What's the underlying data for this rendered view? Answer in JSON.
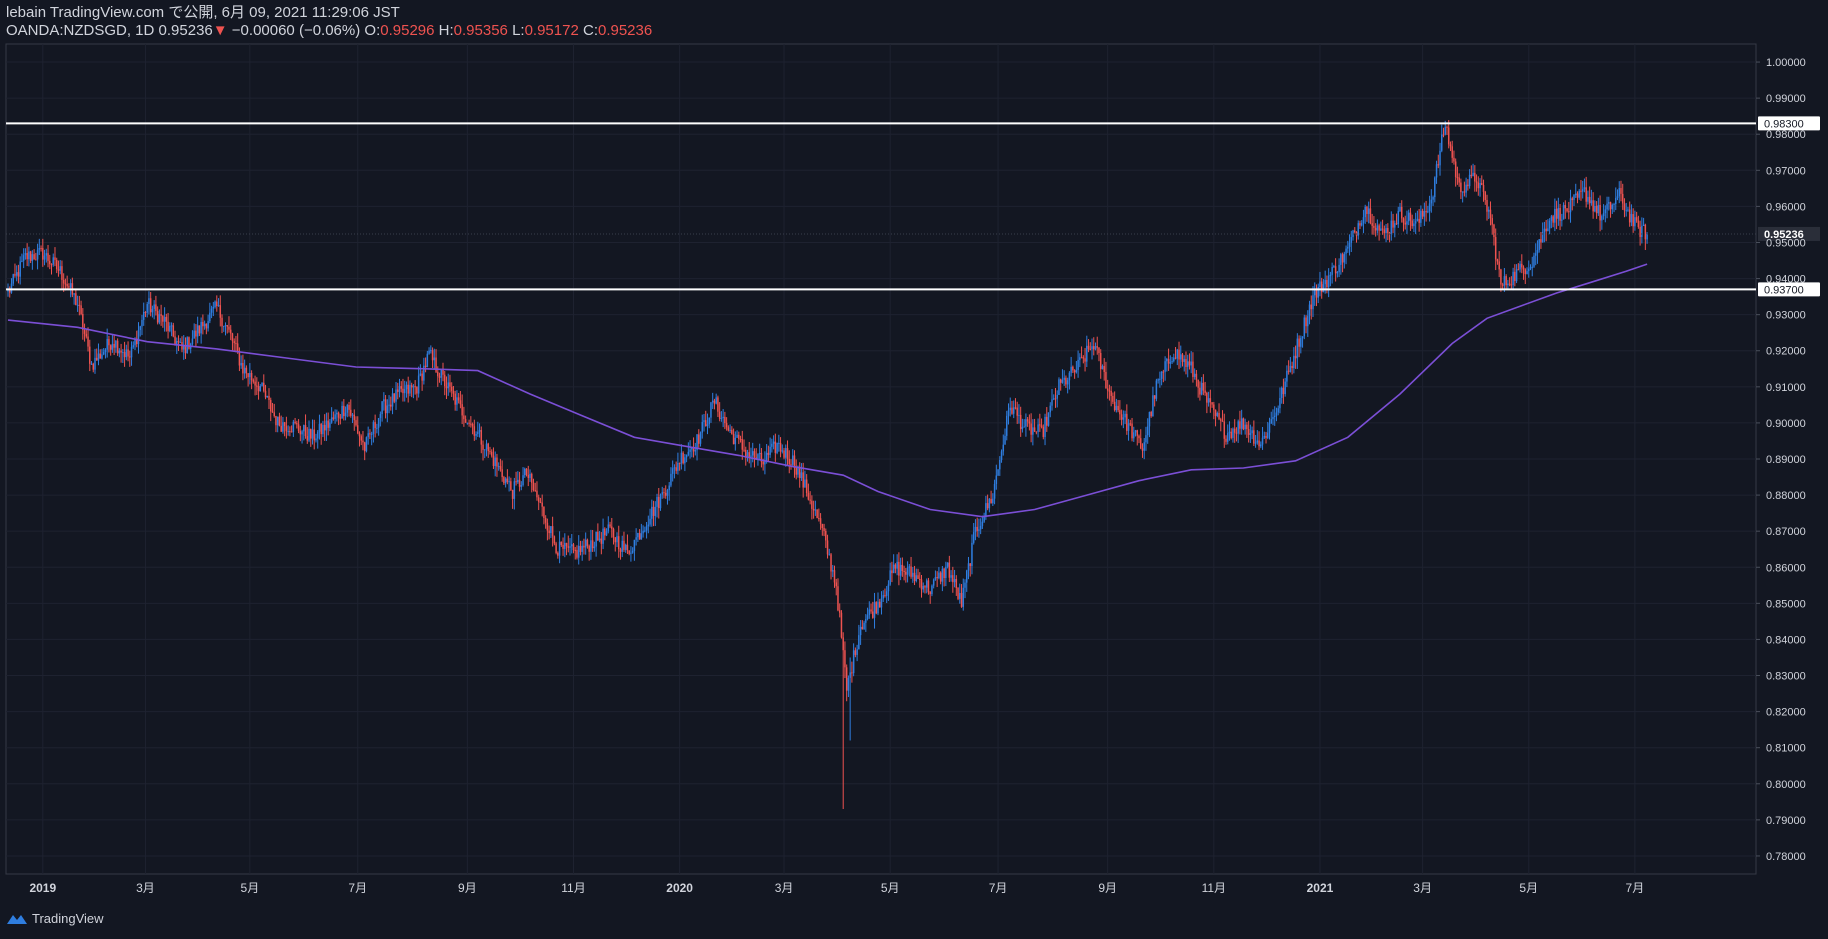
{
  "header": {
    "publisher_line": "lebain TradingView.com で公開, 6月 09, 2021 11:29:06 JST",
    "symbol": "OANDA:NZDSGD, 1D",
    "last_price": "0.95236",
    "arrow": "▼",
    "change": "−0.00060 (−0.06%)",
    "o_label": "O:",
    "o_value": "0.95296",
    "h_label": "H:",
    "h_value": "0.95356",
    "l_label": "L:",
    "l_value": "0.95172",
    "c_label": "C:",
    "c_value": "0.95236"
  },
  "brand": {
    "name": "TradingView"
  },
  "colors": {
    "background": "#131722",
    "up": "#2f7ee0",
    "down": "#ef5350",
    "ma": "#7b4fd6",
    "level_line": "#ffffff",
    "grid": "#1e2230",
    "axis_text": "#d1d4dc"
  },
  "chart_data": {
    "type": "candlestick",
    "title": "OANDA:NZDSGD, 1D",
    "ylim": [
      0.775,
      1.005
    ],
    "y_ticks": [
      "1.00000",
      "0.99000",
      "0.98000",
      "0.97000",
      "0.96000",
      "0.95000",
      "0.94000",
      "0.93000",
      "0.92000",
      "0.91000",
      "0.90000",
      "0.89000",
      "0.88000",
      "0.87000",
      "0.86000",
      "0.85000",
      "0.84000",
      "0.83000",
      "0.82000",
      "0.81000",
      "0.80000",
      "0.79000",
      "0.78000"
    ],
    "x_ticks": [
      "2019",
      "3月",
      "5月",
      "7月",
      "9月",
      "11月",
      "2020",
      "3月",
      "5月",
      "7月",
      "9月",
      "11月",
      "2021",
      "3月",
      "5月",
      "7月"
    ],
    "x_tick_bold": [
      true,
      false,
      false,
      false,
      false,
      false,
      true,
      false,
      false,
      false,
      false,
      false,
      true,
      false,
      false,
      false
    ],
    "x_tick_day_index": [
      20,
      79,
      139,
      201,
      264,
      325,
      386,
      446,
      507,
      569,
      632,
      693,
      754,
      813,
      874,
      935
    ],
    "total_days": 1000,
    "price_path": [
      [
        0,
        0.936
      ],
      [
        10,
        0.946
      ],
      [
        20,
        0.947
      ],
      [
        30,
        0.942
      ],
      [
        40,
        0.933
      ],
      [
        48,
        0.916
      ],
      [
        60,
        0.923
      ],
      [
        70,
        0.918
      ],
      [
        80,
        0.933
      ],
      [
        90,
        0.928
      ],
      [
        100,
        0.92
      ],
      [
        110,
        0.926
      ],
      [
        120,
        0.932
      ],
      [
        128,
        0.924
      ],
      [
        135,
        0.915
      ],
      [
        145,
        0.91
      ],
      [
        155,
        0.9
      ],
      [
        165,
        0.899
      ],
      [
        175,
        0.896
      ],
      [
        185,
        0.9
      ],
      [
        195,
        0.905
      ],
      [
        205,
        0.893
      ],
      [
        215,
        0.904
      ],
      [
        225,
        0.908
      ],
      [
        235,
        0.91
      ],
      [
        242,
        0.919
      ],
      [
        250,
        0.912
      ],
      [
        260,
        0.904
      ],
      [
        270,
        0.897
      ],
      [
        280,
        0.889
      ],
      [
        290,
        0.881
      ],
      [
        298,
        0.886
      ],
      [
        306,
        0.877
      ],
      [
        316,
        0.865
      ],
      [
        326,
        0.864
      ],
      [
        336,
        0.867
      ],
      [
        346,
        0.87
      ],
      [
        356,
        0.864
      ],
      [
        366,
        0.872
      ],
      [
        376,
        0.88
      ],
      [
        386,
        0.89
      ],
      [
        396,
        0.895
      ],
      [
        406,
        0.906
      ],
      [
        414,
        0.898
      ],
      [
        424,
        0.892
      ],
      [
        434,
        0.889
      ],
      [
        442,
        0.894
      ],
      [
        452,
        0.889
      ],
      [
        460,
        0.88
      ],
      [
        468,
        0.87
      ],
      [
        476,
        0.855
      ],
      [
        482,
        0.826
      ],
      [
        490,
        0.844
      ],
      [
        500,
        0.85
      ],
      [
        510,
        0.86
      ],
      [
        520,
        0.858
      ],
      [
        530,
        0.854
      ],
      [
        540,
        0.86
      ],
      [
        548,
        0.85
      ],
      [
        556,
        0.87
      ],
      [
        566,
        0.88
      ],
      [
        576,
        0.905
      ],
      [
        584,
        0.899
      ],
      [
        594,
        0.897
      ],
      [
        604,
        0.91
      ],
      [
        614,
        0.915
      ],
      [
        624,
        0.922
      ],
      [
        634,
        0.907
      ],
      [
        644,
        0.899
      ],
      [
        652,
        0.893
      ],
      [
        660,
        0.91
      ],
      [
        670,
        0.92
      ],
      [
        680,
        0.915
      ],
      [
        690,
        0.905
      ],
      [
        700,
        0.897
      ],
      [
        710,
        0.9
      ],
      [
        720,
        0.894
      ],
      [
        730,
        0.905
      ],
      [
        740,
        0.92
      ],
      [
        750,
        0.935
      ],
      [
        760,
        0.941
      ],
      [
        770,
        0.948
      ],
      [
        780,
        0.96
      ],
      [
        790,
        0.952
      ],
      [
        800,
        0.958
      ],
      [
        810,
        0.955
      ],
      [
        818,
        0.962
      ],
      [
        826,
        0.983
      ],
      [
        834,
        0.965
      ],
      [
        844,
        0.968
      ],
      [
        852,
        0.957
      ],
      [
        858,
        0.938
      ],
      [
        866,
        0.941
      ],
      [
        876,
        0.945
      ],
      [
        886,
        0.957
      ],
      [
        896,
        0.959
      ],
      [
        906,
        0.964
      ],
      [
        916,
        0.957
      ],
      [
        926,
        0.963
      ],
      [
        936,
        0.954
      ],
      [
        942,
        0.9524
      ]
    ],
    "moving_average": [
      [
        0,
        0.9285
      ],
      [
        40,
        0.9265
      ],
      [
        80,
        0.9225
      ],
      [
        120,
        0.9205
      ],
      [
        160,
        0.918
      ],
      [
        200,
        0.9155
      ],
      [
        240,
        0.915
      ],
      [
        270,
        0.9145
      ],
      [
        300,
        0.908
      ],
      [
        330,
        0.902
      ],
      [
        360,
        0.896
      ],
      [
        390,
        0.8935
      ],
      [
        420,
        0.891
      ],
      [
        450,
        0.888
      ],
      [
        480,
        0.8855
      ],
      [
        500,
        0.881
      ],
      [
        530,
        0.876
      ],
      [
        560,
        0.874
      ],
      [
        590,
        0.876
      ],
      [
        620,
        0.88
      ],
      [
        650,
        0.884
      ],
      [
        680,
        0.887
      ],
      [
        710,
        0.8875
      ],
      [
        740,
        0.8895
      ],
      [
        770,
        0.896
      ],
      [
        800,
        0.908
      ],
      [
        830,
        0.922
      ],
      [
        850,
        0.929
      ],
      [
        870,
        0.9325
      ],
      [
        890,
        0.936
      ],
      [
        910,
        0.939
      ],
      [
        930,
        0.942
      ],
      [
        942,
        0.944
      ]
    ],
    "horizontal_levels": [
      {
        "value": 0.983,
        "label": "0.98300"
      },
      {
        "value": 0.937,
        "label": "0.93700"
      }
    ],
    "current_price": {
      "value": 0.95236,
      "label": "0.95236"
    },
    "extreme_wicks": [
      {
        "day": 480,
        "low": 0.793,
        "high": 0.842
      },
      {
        "day": 484,
        "low": 0.812,
        "high": 0.835
      }
    ]
  }
}
